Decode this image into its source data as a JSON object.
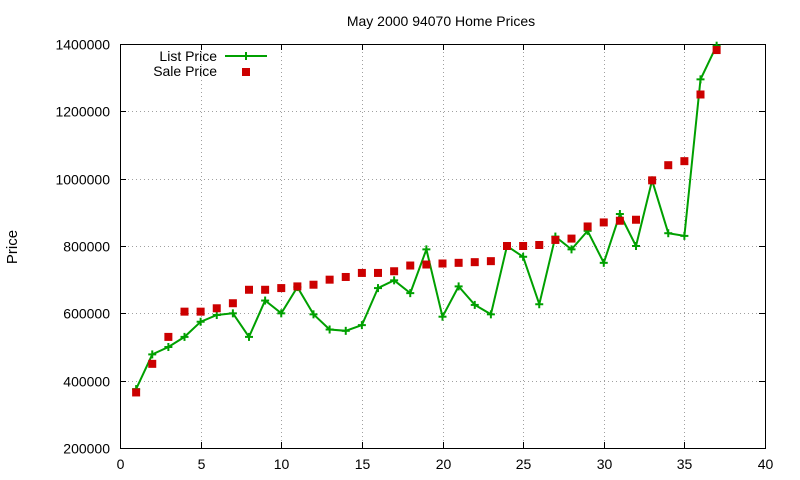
{
  "chart_data": {
    "type": "line",
    "title": "May 2000 94070 Home Prices",
    "xlabel": "",
    "ylabel": "Price",
    "xlim": [
      0,
      40
    ],
    "ylim": [
      200000,
      1400000
    ],
    "xticks": [
      0,
      5,
      10,
      15,
      20,
      25,
      30,
      35,
      40
    ],
    "yticks": [
      200000,
      400000,
      600000,
      800000,
      1000000,
      1200000,
      1400000
    ],
    "grid": true,
    "legend_position": "top-left",
    "series": [
      {
        "name": "List Price",
        "style": "lines+crosses",
        "color": "#00a000",
        "x": [
          1,
          2,
          3,
          4,
          5,
          6,
          7,
          8,
          9,
          10,
          11,
          12,
          13,
          14,
          15,
          16,
          17,
          18,
          19,
          20,
          21,
          22,
          23,
          24,
          25,
          26,
          27,
          28,
          29,
          30,
          31,
          32,
          33,
          34,
          35,
          36,
          37
        ],
        "y": [
          375000,
          478000,
          500000,
          530000,
          575000,
          595000,
          600000,
          530000,
          638000,
          600000,
          678000,
          597000,
          552000,
          548000,
          565000,
          675000,
          698000,
          660000,
          790000,
          590000,
          680000,
          625000,
          597000,
          800000,
          768000,
          627000,
          828000,
          790000,
          845000,
          750000,
          895000,
          800000,
          995000,
          838000,
          830000,
          1295000,
          1395000
        ]
      },
      {
        "name": "Sale Price",
        "style": "squares",
        "color": "#cc0000",
        "x": [
          1,
          2,
          3,
          4,
          5,
          6,
          7,
          8,
          9,
          10,
          11,
          12,
          13,
          14,
          15,
          16,
          17,
          18,
          19,
          20,
          21,
          22,
          23,
          24,
          25,
          26,
          27,
          28,
          29,
          30,
          31,
          32,
          33,
          34,
          35,
          36,
          37
        ],
        "y": [
          365000,
          450000,
          530000,
          605000,
          605000,
          615000,
          630000,
          670000,
          670000,
          675000,
          680000,
          685000,
          700000,
          708000,
          720000,
          720000,
          725000,
          742000,
          745000,
          748000,
          750000,
          752000,
          755000,
          800000,
          800000,
          803000,
          818000,
          822000,
          858000,
          870000,
          875000,
          878000,
          995000,
          1040000,
          1052000,
          1250000,
          1382000
        ]
      }
    ]
  }
}
